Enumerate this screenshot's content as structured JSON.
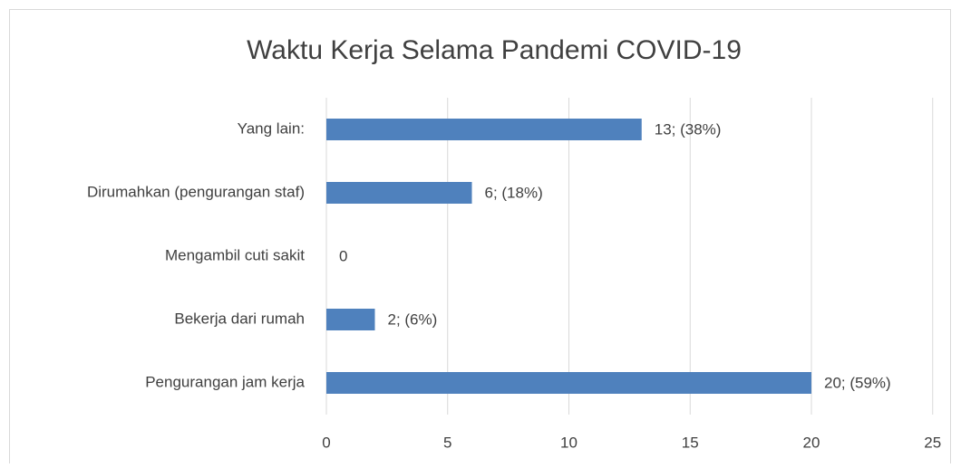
{
  "chart_data": {
    "type": "bar",
    "orientation": "horizontal",
    "title": "Waktu Kerja Selama Pandemi COVID-19",
    "categories": [
      "Yang lain:",
      "Dirumahkan (pengurangan staf)",
      "Mengambil cuti sakit",
      "Bekerja dari rumah",
      "Pengurangan jam kerja"
    ],
    "values": [
      13,
      6,
      0,
      2,
      20
    ],
    "value_labels": [
      "13; (38%)",
      "6; (18%)",
      "0",
      "2; (6%)",
      "20; (59%)"
    ],
    "color": "#4f81bd",
    "xlim": [
      0,
      25
    ],
    "xticks": [
      0,
      5,
      10,
      15,
      20,
      25
    ],
    "grid": true
  }
}
